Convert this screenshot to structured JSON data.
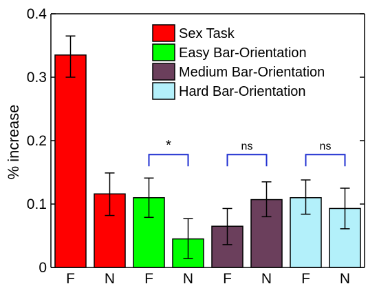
{
  "chart_data": {
    "type": "bar",
    "title": "",
    "xlabel": "",
    "ylabel": "% increase",
    "ylim": [
      0,
      0.4
    ],
    "yticks": [
      0,
      0.1,
      0.2,
      0.3,
      0.4
    ],
    "ytick_labels": [
      "0",
      "0.1",
      "0.2",
      "0.3",
      "0.4"
    ],
    "grid": false,
    "legend_position": "top-right",
    "categories": [
      "F",
      "N",
      "F",
      "N",
      "F",
      "N",
      "F",
      "N"
    ],
    "bars": [
      {
        "label": "F",
        "series": 0,
        "value": 0.335,
        "err_low": 0.3,
        "err_high": 0.365
      },
      {
        "label": "N",
        "series": 0,
        "value": 0.116,
        "err_low": 0.082,
        "err_high": 0.149
      },
      {
        "label": "F",
        "series": 1,
        "value": 0.11,
        "err_low": 0.079,
        "err_high": 0.141
      },
      {
        "label": "N",
        "series": 1,
        "value": 0.045,
        "err_low": 0.014,
        "err_high": 0.077
      },
      {
        "label": "F",
        "series": 2,
        "value": 0.065,
        "err_low": 0.036,
        "err_high": 0.093
      },
      {
        "label": "N",
        "series": 2,
        "value": 0.107,
        "err_low": 0.08,
        "err_high": 0.135
      },
      {
        "label": "F",
        "series": 3,
        "value": 0.11,
        "err_low": 0.084,
        "err_high": 0.138
      },
      {
        "label": "N",
        "series": 3,
        "value": 0.093,
        "err_low": 0.061,
        "err_high": 0.125
      }
    ],
    "series": [
      {
        "name": "Sex Task",
        "color": "#ff0000"
      },
      {
        "name": "Easy Bar-Orientation",
        "color": "#00ff00"
      },
      {
        "name": "Medium Bar-Orientation",
        "color": "#6b3f5c"
      },
      {
        "name": "Hard Bar-Orientation",
        "color": "#b3f0fa"
      }
    ],
    "significance": [
      {
        "bars": [
          2,
          3
        ],
        "label": "*",
        "y": 0.178
      },
      {
        "bars": [
          4,
          5
        ],
        "label": "ns",
        "y": 0.178
      },
      {
        "bars": [
          6,
          7
        ],
        "label": "ns",
        "y": 0.178
      }
    ],
    "bracket_color": "#1f2fd0"
  }
}
